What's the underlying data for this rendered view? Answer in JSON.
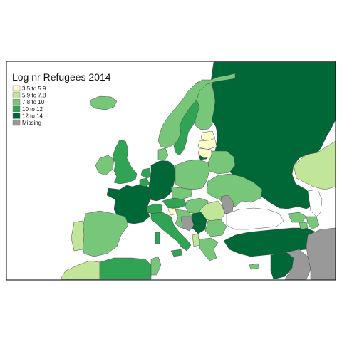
{
  "legend": {
    "title": "Log nr Refugees 2014",
    "classes": [
      {
        "label": "3.5 to 5.9",
        "color": "#FFFFCC"
      },
      {
        "label": "5.9 to 7.8",
        "color": "#C2E699"
      },
      {
        "label": "7.8 to 10",
        "color": "#78C679"
      },
      {
        "label": "10 to 12",
        "color": "#31A354"
      },
      {
        "label": "12 to 14",
        "color": "#006837"
      },
      {
        "label": "Missing",
        "color": "#999999"
      }
    ]
  },
  "regions": [
    {
      "name": "russia",
      "class": 4
    },
    {
      "name": "turkey",
      "class": 4
    },
    {
      "name": "france",
      "class": 4
    },
    {
      "name": "germany",
      "class": 4
    },
    {
      "name": "syria",
      "class": 4
    },
    {
      "name": "iraq",
      "class": 5
    },
    {
      "name": "iran",
      "class": 5
    },
    {
      "name": "serbia",
      "class": 4
    },
    {
      "name": "sweden",
      "class": 3
    },
    {
      "name": "norway",
      "class": 2
    },
    {
      "name": "finland",
      "class": 2
    },
    {
      "name": "united-kingdom",
      "class": 3
    },
    {
      "name": "ireland",
      "class": 2
    },
    {
      "name": "iceland",
      "class": 2
    },
    {
      "name": "spain",
      "class": 2
    },
    {
      "name": "portugal",
      "class": 1
    },
    {
      "name": "italy",
      "class": 3
    },
    {
      "name": "switzerland",
      "class": 3
    },
    {
      "name": "austria",
      "class": 3
    },
    {
      "name": "netherlands",
      "class": 3
    },
    {
      "name": "belgium",
      "class": 3
    },
    {
      "name": "denmark",
      "class": 2
    },
    {
      "name": "poland",
      "class": 2
    },
    {
      "name": "czechia",
      "class": 2
    },
    {
      "name": "hungary",
      "class": 2
    },
    {
      "name": "ukraine",
      "class": 2
    },
    {
      "name": "belarus",
      "class": 2
    },
    {
      "name": "romania",
      "class": 1
    },
    {
      "name": "bulgaria",
      "class": 2
    },
    {
      "name": "greece",
      "class": 2
    },
    {
      "name": "croatia",
      "class": 2
    },
    {
      "name": "bosnia",
      "class": 5
    },
    {
      "name": "albania",
      "class": 1
    },
    {
      "name": "slovenia",
      "class": 0
    },
    {
      "name": "estonia",
      "class": 0
    },
    {
      "name": "latvia",
      "class": 0
    },
    {
      "name": "lithuania",
      "class": 0
    },
    {
      "name": "moldova",
      "class": 5
    },
    {
      "name": "georgia",
      "class": 2
    },
    {
      "name": "azerbaijan",
      "class": 2
    },
    {
      "name": "armenia",
      "class": 2
    },
    {
      "name": "kazakhstan",
      "class": 1
    },
    {
      "name": "algeria",
      "class": 3
    },
    {
      "name": "morocco",
      "class": 1
    },
    {
      "name": "tunisia",
      "class": 2
    },
    {
      "name": "cyprus",
      "class": 2
    }
  ]
}
